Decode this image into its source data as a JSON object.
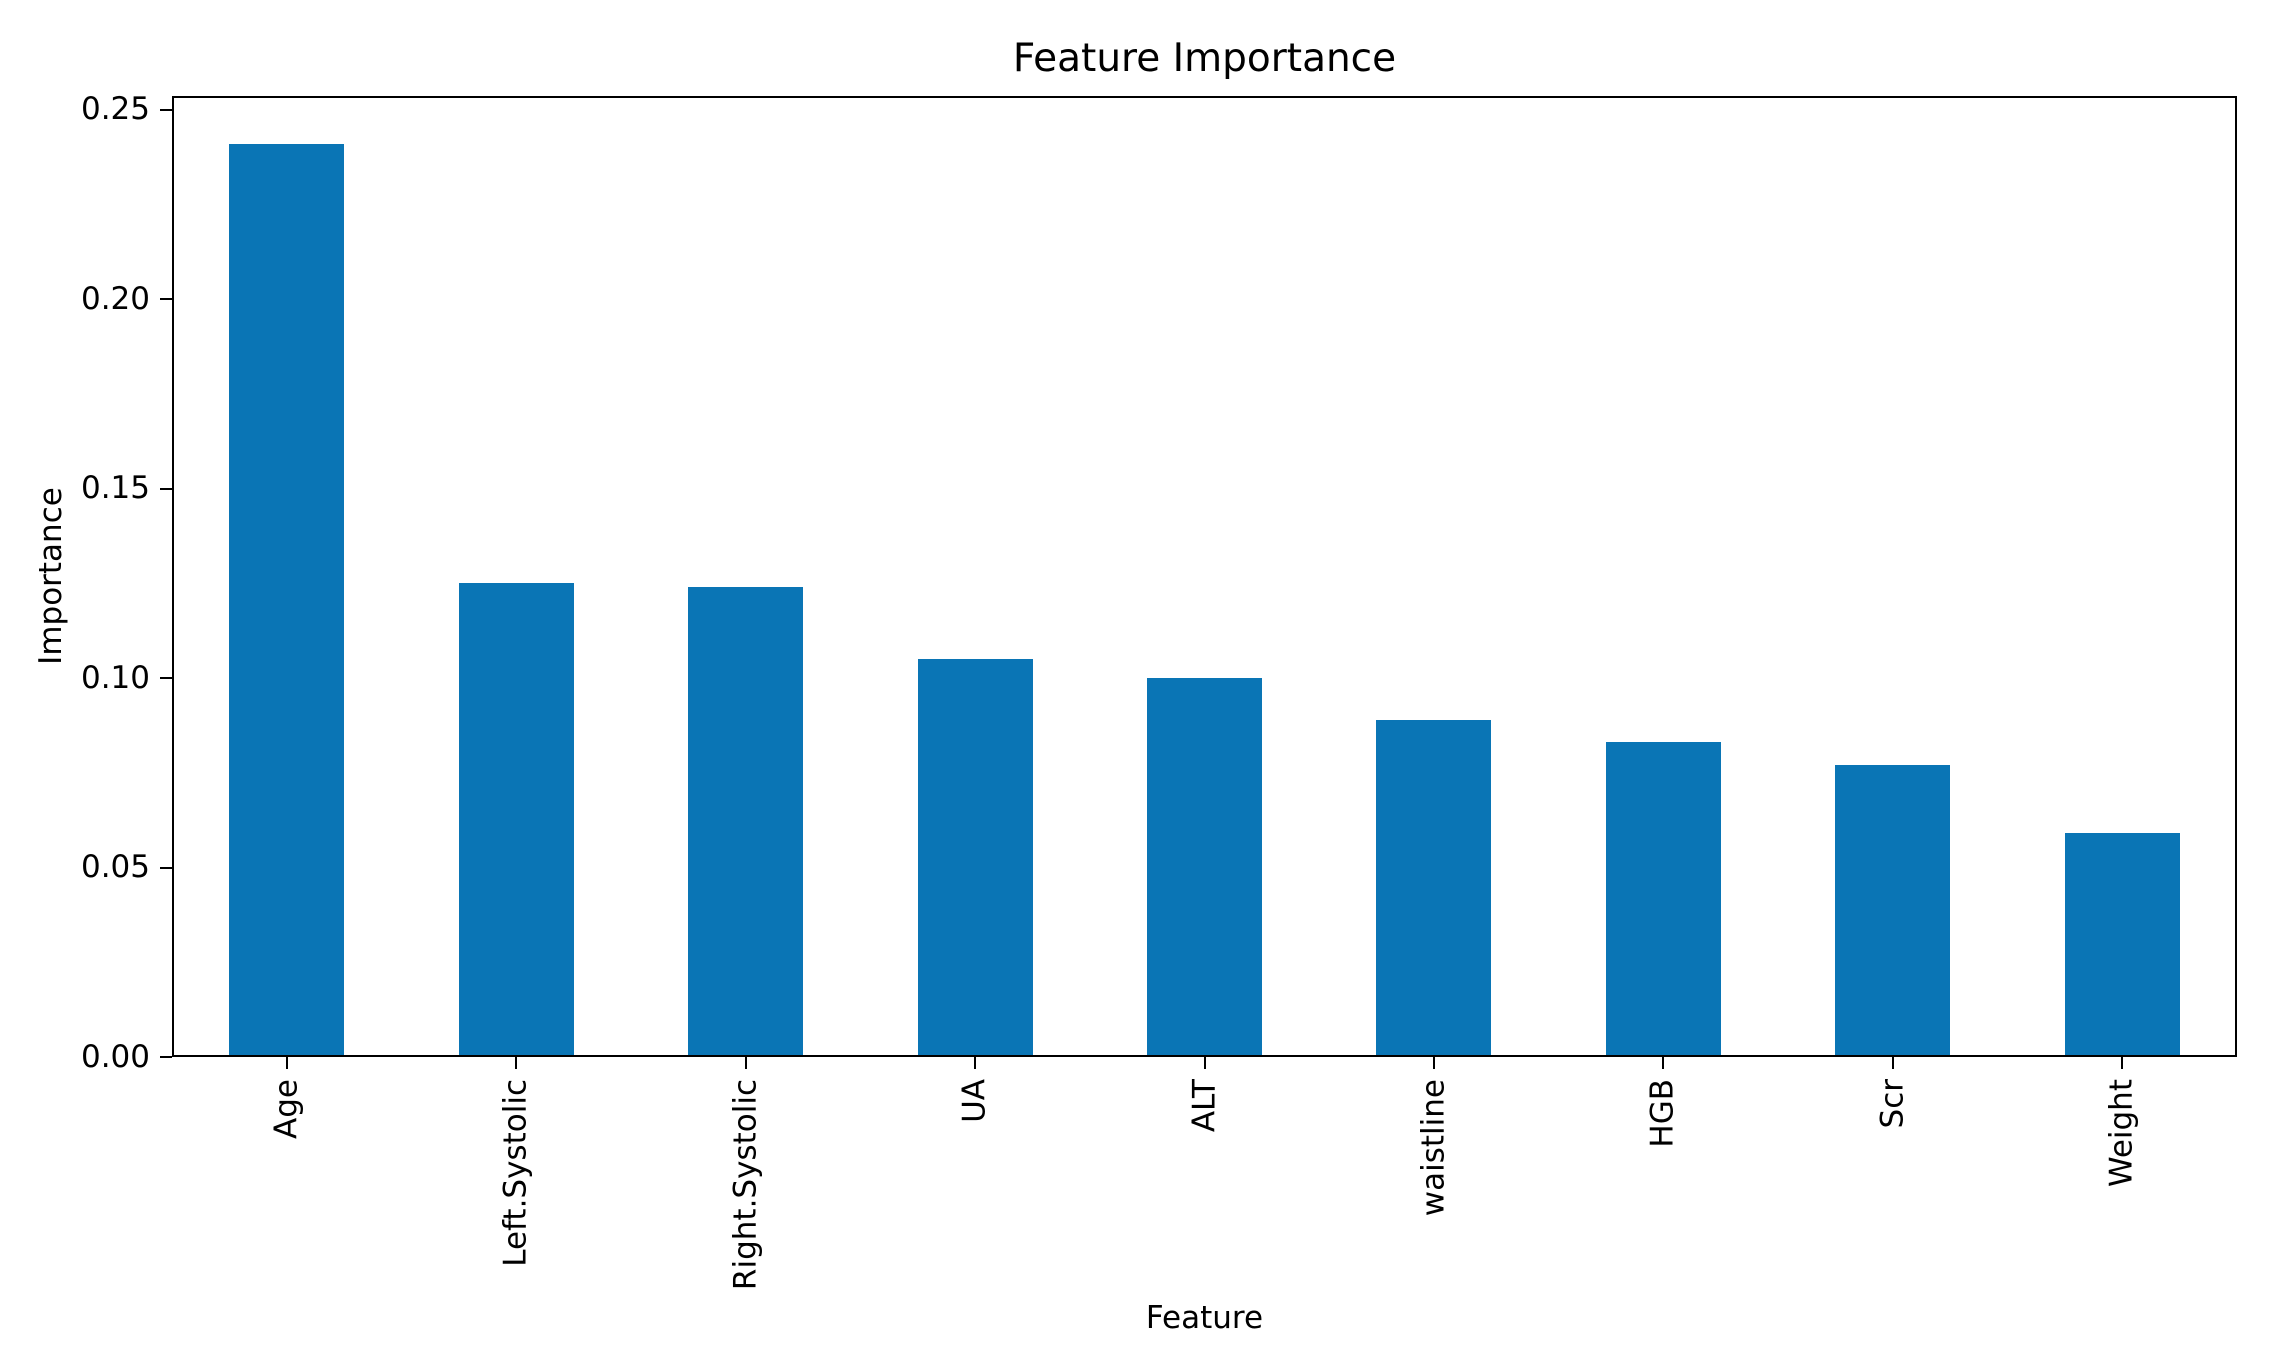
{
  "figure": {
    "background": "#ffffff",
    "text_color": "#000000"
  },
  "chart_data": {
    "type": "bar",
    "title": "Feature Importance",
    "xlabel": "Feature",
    "ylabel": "Importance",
    "categories": [
      "Age",
      "Left.Systolic",
      "Right.Systolic",
      "UA",
      "ALT",
      "waistline",
      "HGB",
      "Scr",
      "Weight"
    ],
    "values": [
      0.241,
      0.125,
      0.124,
      0.105,
      0.1,
      0.089,
      0.083,
      0.077,
      0.059
    ],
    "ylim": [
      0,
      0.2536
    ],
    "yticks": [
      0,
      0.05,
      0.1,
      0.15,
      0.2,
      0.25
    ],
    "ytick_labels": [
      "0.00",
      "0.05",
      "0.10",
      "0.15",
      "0.20",
      "0.25"
    ],
    "xtick_rotation": 90,
    "bar_color": "#0a75b5",
    "axis_color": "#000000",
    "grid": false,
    "legend_position": "none"
  }
}
